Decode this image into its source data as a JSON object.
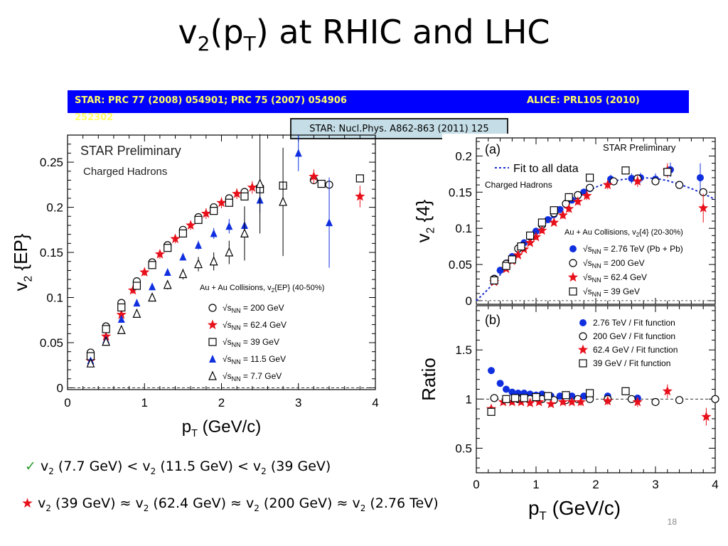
{
  "slide": {
    "title_main": "v",
    "title_sub1": "2",
    "title_mid": "(p",
    "title_sub2": "T",
    "title_end": ") at RHIC and LHC",
    "ref_left": "STAR: PRC 77 (2008) 054901; PRC 75 (2007) 054906",
    "ref_left_cont": "252302",
    "ref_right": "ALICE: PRL105 (2010)",
    "ref_box": "STAR: Nucl.Phys. A862-863 (2011) 125",
    "summary1": {
      "check": "✓",
      "parts": [
        "v",
        "2",
        " (7.7 GeV) < v",
        "2",
        " (11.5 GeV) < v",
        "2",
        " (39 GeV)"
      ]
    },
    "summary2": {
      "star": "★",
      "parts": [
        "v",
        "2",
        " (39 GeV) ≈ v",
        "2",
        " (62.4 GeV) ≈ v",
        "2",
        " (200 GeV) ≈ v",
        "2",
        " (2.76 TeV)"
      ]
    },
    "slide_number": "18",
    "colors": {
      "accent_blue": "#0000ff",
      "ref_text": "#ffff66",
      "red": "#e8101a",
      "blue": "#1030e0"
    }
  },
  "chart_data": [
    {
      "type": "scatter",
      "id": "left",
      "title": "STAR Preliminary",
      "subtitle": "Charged Hadrons",
      "xlabel": "p_T (GeV/c)",
      "ylabel": "v_2 {EP}",
      "xlim": [
        0,
        4
      ],
      "ylim": [
        -0.002,
        0.28
      ],
      "xticks": [
        0,
        1,
        2,
        3,
        4
      ],
      "yticks": [
        0,
        0.05,
        0.1,
        0.15,
        0.2,
        0.25
      ],
      "legend_title": "Au + Au Collisions, v{EP} (40-50%)",
      "legend_label_prefix": "√s",
      "legend_label_sub": "NN",
      "grid": false,
      "series": [
        {
          "name": "= 200 GeV",
          "marker": "circle-open",
          "color": "#000000",
          "x": [
            0.3,
            0.5,
            0.7,
            0.9,
            1.1,
            1.3,
            1.5,
            1.7,
            1.9,
            2.1,
            2.3,
            2.5,
            2.8,
            3.2,
            3.4
          ],
          "y": [
            0.039,
            0.068,
            0.094,
            0.118,
            0.139,
            0.158,
            0.175,
            0.189,
            0.2,
            0.21,
            0.217,
            0.222,
            0.224,
            0.23,
            0.225
          ]
        },
        {
          "name": "= 62.4 GeV",
          "marker": "star",
          "color": "#e8101a",
          "x": [
            0.3,
            0.5,
            0.7,
            0.85,
            1.0,
            1.2,
            1.4,
            1.6,
            1.8,
            2.0,
            2.2,
            2.4,
            3.2,
            3.8
          ],
          "y": [
            0.03,
            0.057,
            0.081,
            0.108,
            0.128,
            0.148,
            0.165,
            0.18,
            0.193,
            0.205,
            0.215,
            0.222,
            0.234,
            0.212
          ],
          "err": [
            0.004,
            0.004,
            0.004,
            0.004,
            0.004,
            0.005,
            0.005,
            0.005,
            0.006,
            0.006,
            0.006,
            0.007,
            0.008,
            0.012
          ]
        },
        {
          "name": "= 39 GeV",
          "marker": "square-open",
          "color": "#000000",
          "x": [
            0.3,
            0.5,
            0.7,
            0.9,
            1.1,
            1.3,
            1.5,
            1.7,
            1.9,
            2.1,
            2.3,
            2.5,
            2.8,
            3.3,
            3.8
          ],
          "y": [
            0.035,
            0.065,
            0.089,
            0.113,
            0.136,
            0.155,
            0.171,
            0.186,
            0.196,
            0.205,
            0.212,
            0.22,
            0.224,
            0.226,
            0.232
          ]
        },
        {
          "name": "= 11.5 GeV",
          "marker": "triangle-filled",
          "color": "#1030e0",
          "x": [
            0.3,
            0.5,
            0.7,
            0.9,
            1.1,
            1.3,
            1.5,
            1.7,
            1.9,
            2.1,
            2.3,
            2.5,
            3.0,
            3.4
          ],
          "y": [
            0.03,
            0.053,
            0.076,
            0.094,
            0.112,
            0.128,
            0.145,
            0.158,
            0.171,
            0.179,
            0.18,
            0.208,
            0.26,
            0.183
          ],
          "err": [
            0.002,
            0.002,
            0.002,
            0.003,
            0.003,
            0.003,
            0.004,
            0.005,
            0.006,
            0.008,
            0.011,
            0.014,
            0.02,
            0.05
          ]
        },
        {
          "name": "= 7.7 GeV",
          "marker": "triangle-open",
          "color": "#000000",
          "x": [
            0.3,
            0.5,
            0.7,
            0.9,
            1.1,
            1.3,
            1.5,
            1.7,
            1.9,
            2.1,
            2.3,
            2.5,
            2.8
          ],
          "y": [
            0.027,
            0.051,
            0.064,
            0.082,
            0.1,
            0.114,
            0.126,
            0.137,
            0.14,
            0.15,
            0.171,
            0.226,
            0.206
          ],
          "err": [
            0.002,
            0.002,
            0.003,
            0.003,
            0.004,
            0.005,
            0.006,
            0.008,
            0.01,
            0.013,
            0.03,
            0.055,
            0.06
          ]
        }
      ]
    },
    {
      "type": "scatter",
      "id": "right-top",
      "panel_label": "(a)",
      "title": "STAR Preliminary",
      "subtitle": "Charged Hadrons",
      "ylabel": "v_2 {4}",
      "xlim": [
        0,
        4
      ],
      "ylim": [
        -0.005,
        0.225
      ],
      "yticks": [
        0,
        0.05,
        0.1,
        0.15,
        0.2
      ],
      "fit_label": "Fit to all data",
      "legend_title": "Au + Au Collisions, v{4} (20-30%)",
      "legend_label_prefix": "√s",
      "legend_label_sub": "NN",
      "grid": false,
      "series": [
        {
          "name": "= 2.76 TeV (Pb + Pb)",
          "marker": "circle-filled",
          "color": "#1030e0",
          "x": [
            0.3,
            0.4,
            0.5,
            0.6,
            0.7,
            0.8,
            0.9,
            1.0,
            1.1,
            1.2,
            1.3,
            1.4,
            1.5,
            1.6,
            1.7,
            1.8,
            1.9,
            2.25,
            2.6,
            2.75,
            3.0,
            3.25,
            3.75
          ],
          "y": [
            0.031,
            0.042,
            0.052,
            0.061,
            0.071,
            0.08,
            0.088,
            0.096,
            0.104,
            0.112,
            0.119,
            0.126,
            0.133,
            0.139,
            0.145,
            0.15,
            0.155,
            0.168,
            0.169,
            0.17,
            0.168,
            0.181,
            0.17
          ],
          "err": [
            0.001,
            0.001,
            0.001,
            0.001,
            0.001,
            0.002,
            0.002,
            0.002,
            0.002,
            0.002,
            0.003,
            0.003,
            0.003,
            0.003,
            0.004,
            0.004,
            0.004,
            0.006,
            0.007,
            0.007,
            0.008,
            0.01,
            0.02
          ]
        },
        {
          "name": "= 200 GeV",
          "marker": "circle-open",
          "color": "#000000",
          "x": [
            0.3,
            0.5,
            0.7,
            0.9,
            1.1,
            1.3,
            1.5,
            1.7,
            1.9,
            2.3,
            2.7,
            3.0,
            3.4,
            3.8
          ],
          "y": [
            0.03,
            0.051,
            0.072,
            0.089,
            0.105,
            0.121,
            0.134,
            0.146,
            0.156,
            0.165,
            0.169,
            0.165,
            0.16,
            0.15
          ]
        },
        {
          "name": "= 62.4 GeV",
          "marker": "star",
          "color": "#e8101a",
          "x": [
            0.3,
            0.5,
            0.6,
            0.7,
            0.8,
            0.9,
            1.0,
            1.1,
            1.3,
            1.45,
            1.55,
            1.7,
            1.85,
            2.2,
            2.7,
            3.2,
            3.8
          ],
          "y": [
            0.026,
            0.044,
            0.055,
            0.063,
            0.071,
            0.08,
            0.088,
            0.097,
            0.108,
            0.118,
            0.127,
            0.137,
            0.145,
            0.16,
            0.165,
            0.18,
            0.128
          ],
          "err": [
            0.003,
            0.003,
            0.003,
            0.003,
            0.003,
            0.003,
            0.004,
            0.004,
            0.004,
            0.005,
            0.005,
            0.005,
            0.006,
            0.006,
            0.008,
            0.01,
            0.02
          ]
        },
        {
          "name": "= 39 GeV",
          "marker": "square-open",
          "color": "#000000",
          "x": [
            0.3,
            0.5,
            0.6,
            0.75,
            0.9,
            1.1,
            1.3,
            1.55,
            1.9,
            2.5,
            3.2
          ],
          "y": [
            0.028,
            0.048,
            0.057,
            0.075,
            0.09,
            0.108,
            0.125,
            0.143,
            0.17,
            0.18,
            0.178
          ]
        }
      ],
      "fit": {
        "x": [
          0,
          0.2,
          0.4,
          0.6,
          0.8,
          1.0,
          1.2,
          1.4,
          1.6,
          1.8,
          2.0,
          2.2,
          2.4,
          2.6,
          2.8,
          3.0,
          3.2,
          3.4,
          3.6,
          3.8,
          4.0
        ],
        "y": [
          0,
          0.016,
          0.036,
          0.057,
          0.076,
          0.094,
          0.11,
          0.124,
          0.137,
          0.148,
          0.157,
          0.163,
          0.167,
          0.169,
          0.17,
          0.169,
          0.166,
          0.161,
          0.155,
          0.148,
          0.14
        ]
      }
    },
    {
      "type": "scatter",
      "id": "right-bottom",
      "panel_label": "(b)",
      "xlabel": "p_T (GeV/c)",
      "ylabel": "Ratio",
      "xlim": [
        0,
        4
      ],
      "ylim": [
        0.25,
        1.95
      ],
      "xticks": [
        0,
        1,
        2,
        3,
        4
      ],
      "yticks": [
        0.5,
        1,
        1.5
      ],
      "grid": false,
      "series": [
        {
          "name": "2.76 TeV / Fit function",
          "marker": "circle-filled",
          "color": "#1030e0",
          "x": [
            0.25,
            0.4,
            0.5,
            0.6,
            0.7,
            0.8,
            0.9,
            1.0,
            1.1,
            1.25,
            1.4,
            1.6,
            1.8,
            2.2,
            2.7
          ],
          "y": [
            1.29,
            1.16,
            1.1,
            1.07,
            1.06,
            1.06,
            1.05,
            1.04,
            1.05,
            1.03,
            1.03,
            1.03,
            1.03,
            1.03,
            1.01
          ]
        },
        {
          "name": "200 GeV / Fit function",
          "marker": "circle-open",
          "color": "#000000",
          "x": [
            0.3,
            0.5,
            0.7,
            0.9,
            1.1,
            1.3,
            1.5,
            1.7,
            1.9,
            2.2,
            2.6,
            3.0,
            3.4,
            4.0
          ],
          "y": [
            1.01,
            1.0,
            1.0,
            1.0,
            1.0,
            0.99,
            0.99,
            1.0,
            1.0,
            1.0,
            1.0,
            0.97,
            0.99,
            1.0
          ]
        },
        {
          "name": "62.4 GeV / Fit function",
          "marker": "star",
          "color": "#e8101a",
          "x": [
            0.25,
            0.45,
            0.6,
            0.75,
            0.9,
            1.05,
            1.25,
            1.45,
            1.6,
            1.75,
            2.2,
            2.7,
            3.2,
            3.85
          ],
          "y": [
            0.9,
            0.97,
            0.97,
            0.97,
            0.96,
            0.97,
            0.95,
            0.97,
            0.97,
            0.97,
            0.98,
            0.97,
            1.08,
            0.82
          ],
          "err": [
            0.03,
            0.03,
            0.03,
            0.03,
            0.03,
            0.03,
            0.03,
            0.03,
            0.03,
            0.04,
            0.04,
            0.05,
            0.07,
            0.09
          ]
        },
        {
          "name": "39 GeV / Fit function",
          "marker": "square-open",
          "color": "#000000",
          "x": [
            0.25,
            0.5,
            0.65,
            0.8,
            1.0,
            1.2,
            1.5,
            1.9,
            2.5
          ],
          "y": [
            0.87,
            1.0,
            1.01,
            1.01,
            1.02,
            1.03,
            1.04,
            1.06,
            1.08
          ]
        }
      ]
    }
  ]
}
